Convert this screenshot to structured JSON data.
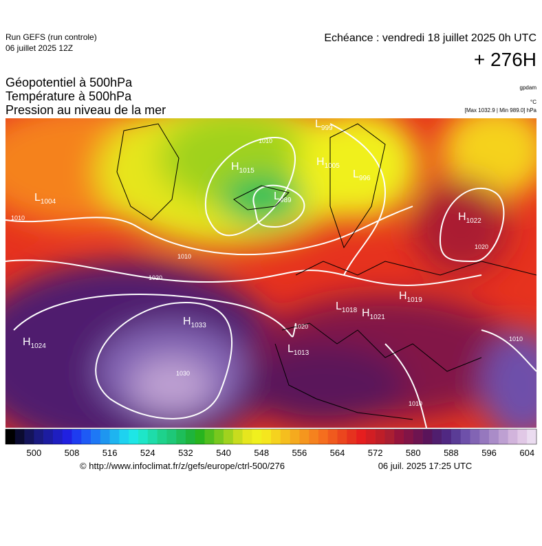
{
  "header": {
    "run": "Run GEFS (run controle)",
    "run_date": "06 juillet 2025 12Z",
    "valid": "Echéance : vendredi 18 juillet 2025 0h UTC",
    "lead": "+ 276H",
    "fields": [
      "Géopotentiel à 500hPa",
      "Température à 500hPa",
      "Pression au niveau de la mer"
    ],
    "unit_geo": "gpdam",
    "unit_temp": "°C",
    "pressure_range": "[Max 1032.9 | Min 989.0] hPa"
  },
  "map": {
    "centers": [
      {
        "type": "L",
        "value": 1004
      },
      {
        "type": "H",
        "value": 1015
      },
      {
        "type": "L",
        "value": 989
      },
      {
        "type": "L",
        "value": 999
      },
      {
        "type": "H",
        "value": 1005
      },
      {
        "type": "L",
        "value": 996
      },
      {
        "type": "H",
        "value": 1022
      },
      {
        "type": "H",
        "value": 1019
      },
      {
        "type": "L",
        "value": 1018
      },
      {
        "type": "H",
        "value": 1021
      },
      {
        "type": "H",
        "value": 1033
      },
      {
        "type": "H",
        "value": 1024
      },
      {
        "type": "L",
        "value": 1013
      }
    ],
    "isobar_labels": [
      1010,
      1010,
      1020,
      1030,
      1020,
      1010,
      1010,
      1020,
      1010
    ]
  },
  "scale": {
    "lim": [
      494,
      606
    ],
    "ticks": [
      500,
      508,
      516,
      524,
      532,
      540,
      548,
      556,
      564,
      572,
      580,
      588,
      596,
      604
    ],
    "colors": [
      "#000000",
      "#0b0b30",
      "#14145a",
      "#1a1a80",
      "#1c1ca0",
      "#1e1ec0",
      "#2020e0",
      "#1e3cf0",
      "#1e5af5",
      "#1e78f5",
      "#1e96f0",
      "#1eb4f0",
      "#1ed2f0",
      "#1ee6e6",
      "#1ee6c8",
      "#1edcaa",
      "#1ed28c",
      "#1ec878",
      "#1ebe5a",
      "#1eb43c",
      "#28b41e",
      "#50be1e",
      "#78c81e",
      "#a0d21e",
      "#c8dc1e",
      "#e6e61e",
      "#f0f01e",
      "#f5e61e",
      "#f5d21e",
      "#f5be1e",
      "#f5aa1e",
      "#f5961e",
      "#f5821e",
      "#f56e1e",
      "#f05a1e",
      "#eb461e",
      "#e6321e",
      "#e61e1e",
      "#d21e23",
      "#be1e28",
      "#aa1e32",
      "#96143c",
      "#821446",
      "#6e1450",
      "#5a145a",
      "#501e6e",
      "#502882",
      "#5a3c96",
      "#6e50aa",
      "#8264b4",
      "#9678be",
      "#aa8cc8",
      "#bea0d2",
      "#d2b4dc",
      "#e1c8e6",
      "#ebdcf0"
    ]
  },
  "footer": {
    "url": "© http://www.infoclimat.fr/z/gefs/europe/ctrl-500/276",
    "generated": "06 juil. 2025 17:25 UTC"
  }
}
